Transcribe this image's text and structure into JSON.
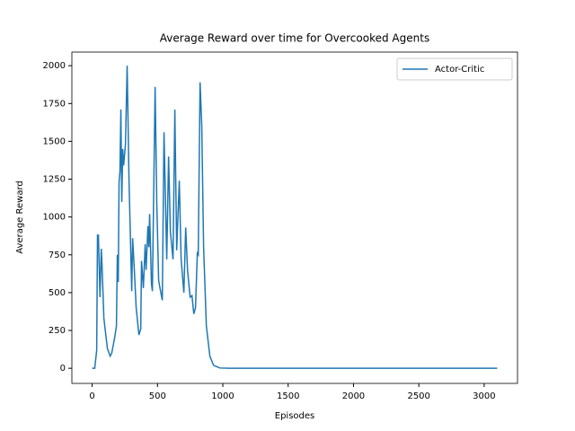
{
  "chart_data": {
    "type": "line",
    "title": "Average Reward over time for Overcooked Agents",
    "x_label": "Episodes",
    "y_label": "Average Reward",
    "x": [
      0,
      20,
      35,
      41,
      48,
      60,
      70,
      75,
      90,
      117,
      138,
      150,
      172,
      186,
      193,
      200,
      206,
      213,
      220,
      227,
      234,
      241,
      255,
      268,
      282,
      303,
      310,
      323,
      337,
      358,
      372,
      378,
      392,
      406,
      413,
      427,
      434,
      440,
      454,
      461,
      482,
      495,
      509,
      530,
      537,
      550,
      571,
      585,
      599,
      619,
      633,
      647,
      667,
      681,
      702,
      716,
      730,
      750,
      764,
      778,
      791,
      805,
      812,
      826,
      839,
      853,
      874,
      901,
      929,
      977,
      1046,
      3100
    ],
    "series": [
      {
        "name": "Actor-Critic",
        "color": "#1f77b4",
        "values": [
          0,
          0,
          120,
          880,
          880,
          470,
          790,
          700,
          330,
          130,
          80,
          100,
          200,
          280,
          750,
          570,
          1230,
          1300,
          1710,
          1100,
          1450,
          1340,
          1480,
          2000,
          1250,
          510,
          860,
          650,
          400,
          220,
          260,
          710,
          530,
          820,
          650,
          940,
          800,
          1020,
          560,
          510,
          1860,
          1080,
          580,
          480,
          450,
          1560,
          720,
          1400,
          900,
          720,
          1710,
          780,
          1240,
          720,
          500,
          930,
          650,
          470,
          480,
          360,
          400,
          760,
          750,
          1890,
          1600,
          800,
          280,
          80,
          20,
          2,
          0,
          0
        ]
      }
    ],
    "xlim": [
      -155,
      3255
    ],
    "ylim": [
      -100,
      2090
    ],
    "xticks": [
      0,
      500,
      1000,
      1500,
      2000,
      2500,
      3000
    ],
    "yticks": [
      0,
      250,
      500,
      750,
      1000,
      1250,
      1500,
      1750,
      2000
    ],
    "legend": "upper right"
  }
}
